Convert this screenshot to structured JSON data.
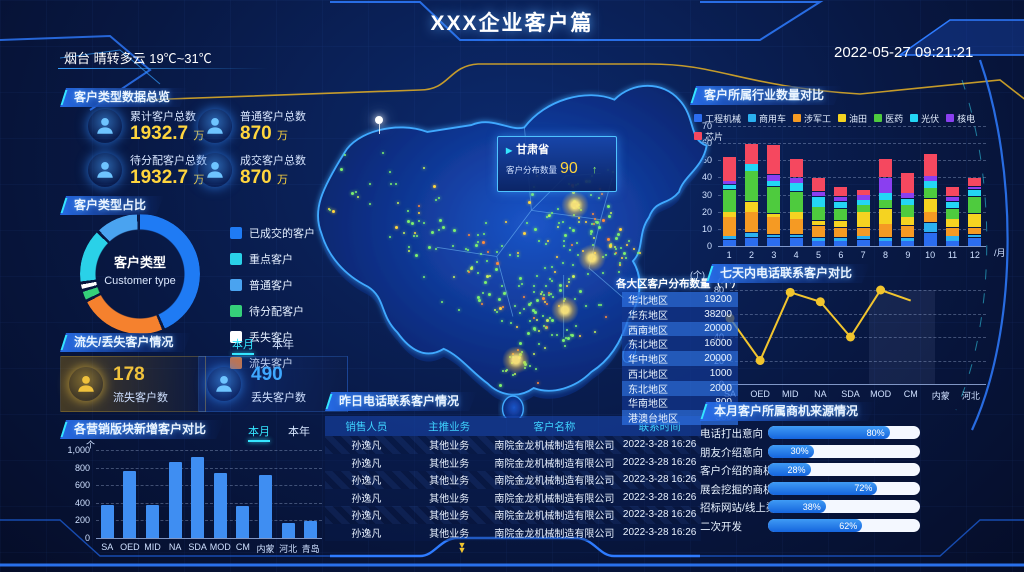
{
  "header": {
    "title": "XXX企业客户篇",
    "weather": "烟台 晴转多云 19℃~31℃",
    "datetime": "2022-05-27 09:21:21"
  },
  "overview": {
    "title": "客户类型数据总览",
    "stats": [
      {
        "label": "累计客户总数",
        "value": "1932.7",
        "unit": "万"
      },
      {
        "label": "普通客户总数",
        "value": "870",
        "unit": "万"
      },
      {
        "label": "待分配客户总数",
        "value": "1932.7",
        "unit": "万"
      },
      {
        "label": "成交客户总数",
        "value": "870",
        "unit": "万"
      }
    ]
  },
  "type_ratio": {
    "title": "客户类型占比",
    "center_cn": "客户类型",
    "center_en": "Customer type"
  },
  "churn": {
    "title": "流失/丢失客户情况",
    "tab_month": "本月",
    "tab_year": "本年",
    "cards": [
      {
        "value": "178",
        "label": "流失客户数",
        "color": "#f0c23c"
      },
      {
        "value": "490",
        "label": "丢失客户数",
        "color": "#3fa9ff"
      }
    ]
  },
  "marketing": {
    "title": "各营销版块新增客户对比",
    "tab_month": "本月",
    "tab_year": "本年",
    "ylabel": "个"
  },
  "map": {
    "tooltip": {
      "province": "甘肃省",
      "label": "客户分布数量",
      "value": "90",
      "trend": "↑"
    }
  },
  "regions": {
    "title": "各大区客户分布数量（个）",
    "rows": [
      {
        "name": "华北地区",
        "value": "19200"
      },
      {
        "name": "华东地区",
        "value": "38200"
      },
      {
        "name": "西南地区",
        "value": "20000"
      },
      {
        "name": "东北地区",
        "value": "16000"
      },
      {
        "name": "华中地区",
        "value": "20000"
      },
      {
        "name": "西北地区",
        "value": "1000"
      },
      {
        "name": "东北地区",
        "value": "2000"
      },
      {
        "name": "华南地区",
        "value": "800"
      },
      {
        "name": "港澳台地区",
        "value": "300"
      }
    ]
  },
  "call_table": {
    "title": "昨日电话联系客户情况",
    "headers": [
      "销售人员",
      "主推业务",
      "客户名称",
      "联系时间"
    ],
    "rows": [
      {
        "person": "孙逸凡",
        "biz": "其他业务",
        "company": "南院金龙机械制造有限公司",
        "time": "2022-3-28 16:26"
      },
      {
        "person": "孙逸凡",
        "biz": "其他业务",
        "company": "南院金龙机械制造有限公司",
        "time": "2022-3-28 16:26"
      },
      {
        "person": "孙逸凡",
        "biz": "其他业务",
        "company": "南院金龙机械制造有限公司",
        "time": "2022-3-28 16:26"
      },
      {
        "person": "孙逸凡",
        "biz": "其他业务",
        "company": "南院金龙机械制造有限公司",
        "time": "2022-3-28 16:26"
      },
      {
        "person": "孙逸凡",
        "biz": "其他业务",
        "company": "南院金龙机械制造有限公司",
        "time": "2022-3-28 16:26"
      },
      {
        "person": "孙逸凡",
        "biz": "其他业务",
        "company": "南院金龙机械制造有限公司",
        "time": "2022-3-28 16:26"
      }
    ]
  },
  "industry": {
    "title": "客户所属行业数量对比",
    "xlabel": "/月"
  },
  "seven_day": {
    "title": "七天内电话联系客户对比",
    "unit": "(个)"
  },
  "opportunity": {
    "title": "本月客户所属商机来源情况",
    "bars": [
      {
        "label": "电话打出意向",
        "pct": 80
      },
      {
        "label": "朋友介绍意向",
        "pct": 30
      },
      {
        "label": "客户介绍的商机",
        "pct": 28
      },
      {
        "label": "展会挖掘的商机",
        "pct": 72
      },
      {
        "label": "招标网站/线上渠道",
        "pct": 38
      },
      {
        "label": "二次开发",
        "pct": 62
      }
    ]
  },
  "chart_data": [
    {
      "id": "customer_type_donut",
      "type": "pie",
      "title": "客户类型占比",
      "slices": [
        {
          "label": "已成交的客户",
          "value": 44,
          "color": "#1f7bf4"
        },
        {
          "label": "流失客户",
          "value": 24,
          "color": "#f5812e"
        },
        {
          "label": "待分配客户",
          "value": 3,
          "color": "#35d07a"
        },
        {
          "label": "丢失客户",
          "value": 2,
          "color": "#ffffff"
        },
        {
          "label": "重点客户",
          "value": 15,
          "color": "#2ad1e8"
        },
        {
          "label": "普通客户",
          "value": 12,
          "color": "#4aa3f0"
        }
      ],
      "legend_order": [
        "已成交的客户",
        "重点客户",
        "普通客户",
        "待分配客户",
        "丢失客户",
        "流失客户"
      ]
    },
    {
      "id": "marketing_bar",
      "type": "bar",
      "title": "各营销版块新增客户对比",
      "categories": [
        "SA",
        "OED",
        "MID",
        "NA",
        "SDA",
        "MOD",
        "CM",
        "内蒙",
        "河北",
        "青岛"
      ],
      "values": [
        370,
        760,
        380,
        860,
        920,
        740,
        360,
        720,
        170,
        190
      ],
      "ylim": [
        0,
        1000
      ],
      "yticks": [
        0,
        200,
        400,
        600,
        800,
        1000
      ],
      "ylabel": "个",
      "color": "#3f8ef2",
      "grid": true
    },
    {
      "id": "industry_stack",
      "type": "bar",
      "stacked": true,
      "title": "客户所属行业数量对比",
      "categories": [
        "1",
        "2",
        "3",
        "4",
        "5",
        "6",
        "7",
        "8",
        "9",
        "10",
        "11",
        "12"
      ],
      "xlabel": "/月",
      "ylim": [
        0,
        70
      ],
      "yticks": [
        0,
        10,
        20,
        30,
        40,
        50,
        60,
        70
      ],
      "grid": true,
      "series": [
        {
          "name": "工程机械",
          "color": "#2b6df0",
          "values": [
            4,
            5,
            5,
            5,
            3,
            3,
            4,
            3,
            3,
            8,
            3,
            5
          ]
        },
        {
          "name": "商用车",
          "color": "#2bb1f0",
          "values": [
            2,
            3,
            2,
            2,
            2,
            2,
            2,
            2,
            2,
            6,
            3,
            2
          ]
        },
        {
          "name": "涉军工",
          "color": "#f59a23",
          "values": [
            11,
            12,
            10,
            9,
            7,
            6,
            5,
            8,
            7,
            6,
            5,
            4
          ]
        },
        {
          "name": "油田",
          "color": "#f5d321",
          "values": [
            3,
            6,
            2,
            4,
            3,
            4,
            9,
            9,
            5,
            8,
            5,
            8
          ]
        },
        {
          "name": "医药",
          "color": "#4ecb3e",
          "values": [
            13,
            18,
            16,
            12,
            8,
            7,
            4,
            5,
            7,
            6,
            6,
            10
          ]
        },
        {
          "name": "光伏",
          "color": "#23d6f5",
          "values": [
            3,
            4,
            3,
            5,
            6,
            4,
            3,
            4,
            4,
            4,
            4,
            4
          ]
        },
        {
          "name": "核电",
          "color": "#8a3ff0",
          "values": [
            2,
            0,
            4,
            3,
            3,
            3,
            3,
            9,
            3,
            3,
            3,
            2
          ]
        },
        {
          "name": "芯片",
          "color": "#f5485f",
          "values": [
            14,
            12,
            17,
            11,
            8,
            6,
            3,
            11,
            12,
            13,
            6,
            5
          ]
        }
      ]
    },
    {
      "id": "seven_day_line",
      "type": "line",
      "title": "七天内电话联系客户对比",
      "categories": [
        "SA",
        "OED",
        "MID",
        "NA",
        "SDA",
        "MOD",
        "CM",
        "内蒙",
        "河北"
      ],
      "values": [
        56,
        20,
        78,
        70,
        40,
        80,
        71,
        null,
        null
      ],
      "markers": [
        true,
        true,
        true,
        true,
        true,
        true,
        false,
        false,
        false
      ],
      "ylim": [
        0,
        80
      ],
      "yticks": [
        0,
        20,
        40,
        60,
        80
      ],
      "color": "#f2c52e",
      "grid": true
    }
  ],
  "colors": {
    "accent_cyan": "#35e6ff",
    "accent_blue": "#2e7bff",
    "value_yellow": "#ffd53e"
  }
}
